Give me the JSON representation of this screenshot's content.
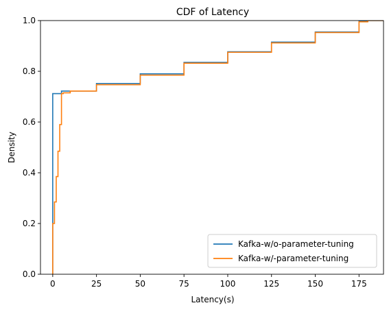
{
  "chart_data": {
    "type": "line",
    "title": "CDF of Latency",
    "xlabel": "Latency(s)",
    "ylabel": "Density",
    "xlim": [
      -7,
      189
    ],
    "ylim": [
      0,
      1
    ],
    "x_ticks": [
      0,
      25,
      50,
      75,
      100,
      125,
      150,
      175
    ],
    "y_ticks": [
      0.0,
      0.2,
      0.4,
      0.6,
      0.8,
      1.0
    ],
    "x_tick_labels": [
      "0",
      "25",
      "50",
      "75",
      "100",
      "125",
      "150",
      "175"
    ],
    "y_tick_labels": [
      "0.0",
      "0.2",
      "0.4",
      "0.6",
      "0.8",
      "1.0"
    ],
    "grid": false,
    "legend_position": "lower right",
    "series": [
      {
        "name": "Kafka-w/o-parameter-tuning",
        "color": "#1f77b4",
        "step": true,
        "x": [
          0,
          0,
          0,
          5,
          25,
          50,
          75,
          100,
          125,
          150,
          175,
          180
        ],
        "y": [
          0,
          0.2,
          0.712,
          0.722,
          0.752,
          0.79,
          0.835,
          0.877,
          0.915,
          0.955,
          0.997,
          1.0
        ]
      },
      {
        "name": "Kafka-w/-parameter-tuning",
        "color": "#ff7f0e",
        "step": true,
        "x": [
          0,
          0,
          1,
          2,
          3,
          4,
          5,
          6,
          10,
          25,
          50,
          75,
          100,
          125,
          150,
          175,
          180
        ],
        "y": [
          0,
          0.2,
          0.285,
          0.385,
          0.485,
          0.59,
          0.712,
          0.715,
          0.722,
          0.747,
          0.785,
          0.832,
          0.875,
          0.912,
          0.953,
          0.995,
          1.0
        ]
      }
    ]
  }
}
